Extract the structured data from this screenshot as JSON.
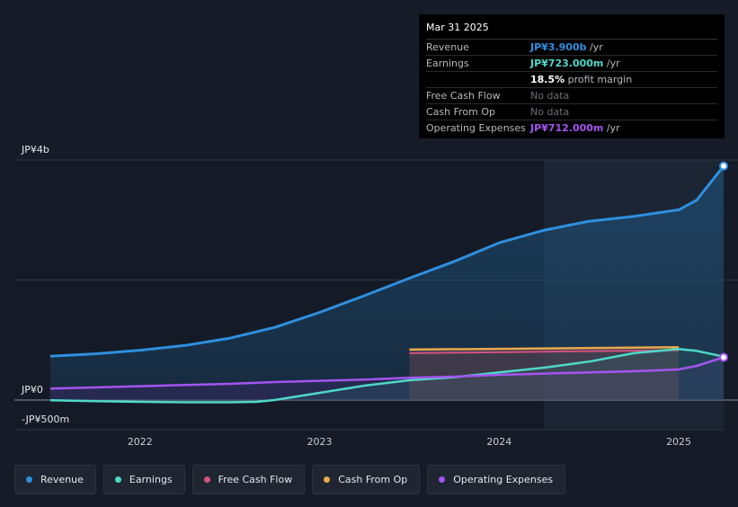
{
  "tooltip": {
    "date": "Mar 31 2025",
    "rows": [
      {
        "label": "Revenue",
        "value": "JP¥3.900b",
        "suffix": " /yr",
        "color": "#2e8fe0"
      },
      {
        "label": "Earnings",
        "value": "JP¥723.000m",
        "suffix": " /yr",
        "color": "#4fd8c9"
      },
      {
        "label": "",
        "value": "18.5%",
        "suffix": " profit margin",
        "color": "#ffffff"
      },
      {
        "label": "Free Cash Flow",
        "value": "No data",
        "suffix": "",
        "color": ""
      },
      {
        "label": "Cash From Op",
        "value": "No data",
        "suffix": "",
        "color": ""
      },
      {
        "label": "Operating Expenses",
        "value": "JP¥712.000m",
        "suffix": " /yr",
        "color": "#a454f0"
      }
    ]
  },
  "chart_data": {
    "type": "area",
    "y_labels": {
      "top": "JP¥4b",
      "zero": "JP¥0",
      "bottom": "-JP¥500m"
    },
    "x_ticks": [
      "2022",
      "2023",
      "2024",
      "2025"
    ],
    "ylim": [
      -500,
      4000
    ],
    "xlim": [
      2021.3,
      2025.25
    ],
    "grid": true,
    "highlight_start": 2024.25,
    "series": [
      {
        "name": "Revenue",
        "color": "#2e8fe0",
        "x": [
          2021.5,
          2021.75,
          2022.0,
          2022.25,
          2022.5,
          2022.75,
          2023.0,
          2023.25,
          2023.5,
          2023.75,
          2024.0,
          2024.25,
          2024.5,
          2024.75,
          2025.0,
          2025.1,
          2025.25
        ],
        "y": [
          730,
          770,
          830,
          910,
          1030,
          1210,
          1460,
          1740,
          2030,
          2310,
          2620,
          2830,
          2980,
          3060,
          3170,
          3330,
          3900
        ]
      },
      {
        "name": "Earnings",
        "color": "#4fd8c9",
        "x": [
          2021.5,
          2021.75,
          2022.0,
          2022.25,
          2022.5,
          2022.65,
          2022.75,
          2023.0,
          2023.25,
          2023.5,
          2023.75,
          2024.0,
          2024.25,
          2024.5,
          2024.75,
          2025.0,
          2025.1,
          2025.25
        ],
        "y": [
          -5,
          -20,
          -30,
          -38,
          -38,
          -30,
          0,
          120,
          240,
          330,
          380,
          460,
          540,
          640,
          780,
          850,
          820,
          723
        ]
      },
      {
        "name": "Free Cash Flow",
        "color": "#d4537e",
        "x": [
          2023.5,
          2025.0
        ],
        "y": [
          780,
          830
        ]
      },
      {
        "name": "Cash From Op",
        "color": "#e8a94e",
        "x": [
          2023.5,
          2025.0
        ],
        "y": [
          840,
          880
        ]
      },
      {
        "name": "Operating Expenses",
        "color": "#a454f0",
        "x": [
          2021.5,
          2021.75,
          2022.0,
          2022.25,
          2022.5,
          2022.75,
          2023.0,
          2023.25,
          2023.5,
          2023.75,
          2024.0,
          2024.25,
          2024.5,
          2024.75,
          2025.0,
          2025.1,
          2025.25
        ],
        "y": [
          190,
          210,
          230,
          250,
          270,
          300,
          320,
          340,
          370,
          390,
          420,
          440,
          460,
          480,
          510,
          570,
          712
        ]
      }
    ]
  },
  "legend": [
    {
      "label": "Revenue",
      "color": "#2e8fe0"
    },
    {
      "label": "Earnings",
      "color": "#4fd8c9"
    },
    {
      "label": "Free Cash Flow",
      "color": "#d4537e"
    },
    {
      "label": "Cash From Op",
      "color": "#e8a94e"
    },
    {
      "label": "Operating Expenses",
      "color": "#a454f0"
    }
  ]
}
